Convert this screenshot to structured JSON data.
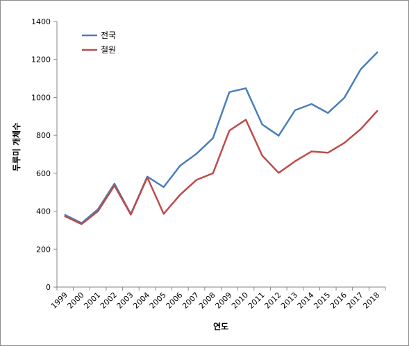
{
  "chart_data": {
    "type": "line",
    "title": "",
    "xlabel": "연도",
    "ylabel": "두루미 개체수",
    "ylim": [
      0,
      1400
    ],
    "yticks": [
      0,
      200,
      400,
      600,
      800,
      1000,
      1200,
      1400
    ],
    "categories": [
      "1999",
      "2000",
      "2001",
      "2002",
      "2003",
      "2004",
      "2005",
      "2006",
      "2007",
      "2008",
      "2009",
      "2010",
      "2011",
      "2012",
      "2013",
      "2014",
      "2015",
      "2016",
      "2017",
      "2018"
    ],
    "grid": false,
    "legend_position": "top-left",
    "series": [
      {
        "name": "전국",
        "color": "#4a7ebb",
        "values": [
          380,
          337,
          410,
          545,
          385,
          582,
          527,
          640,
          703,
          785,
          1028,
          1048,
          857,
          798,
          932,
          965,
          918,
          998,
          1148,
          1237
        ]
      },
      {
        "name": "철원",
        "color": "#be4b48",
        "values": [
          373,
          332,
          400,
          535,
          382,
          578,
          386,
          487,
          565,
          600,
          825,
          882,
          693,
          602,
          663,
          715,
          708,
          760,
          833,
          928
        ]
      }
    ]
  }
}
